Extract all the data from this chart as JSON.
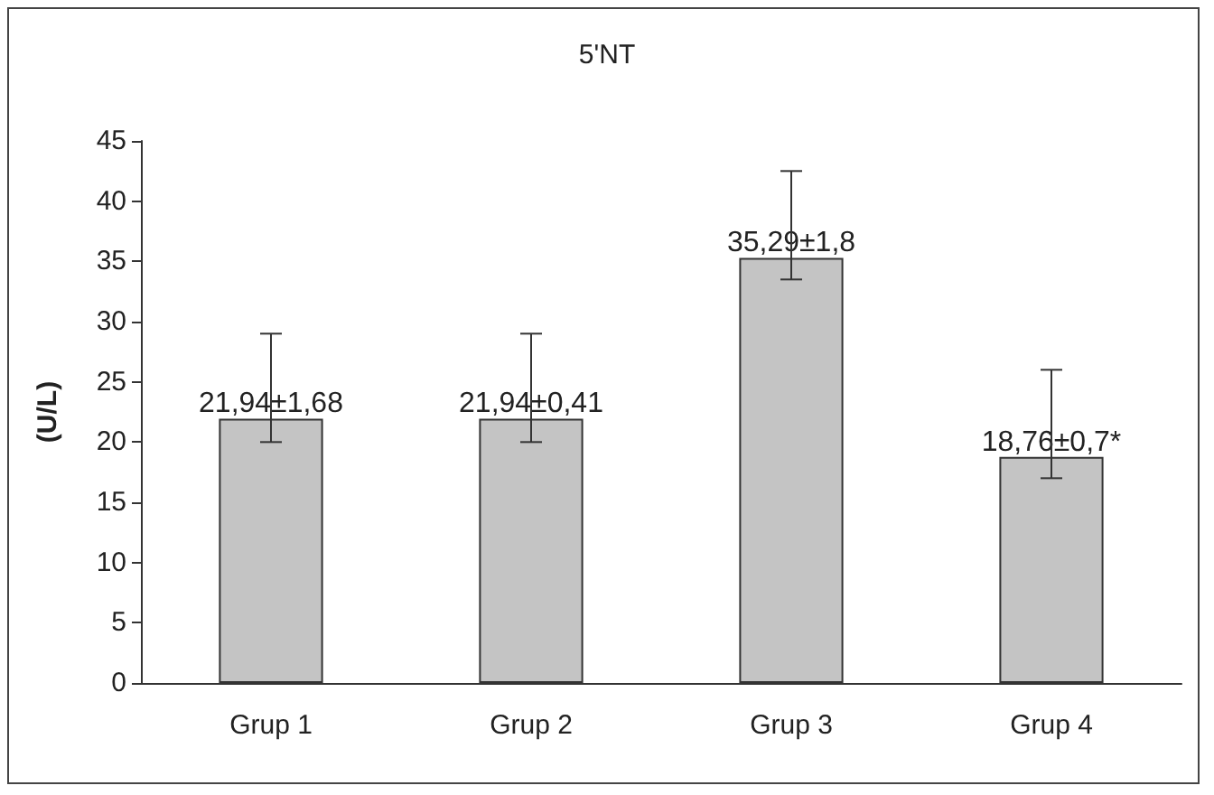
{
  "chart_data": {
    "type": "bar",
    "title": "5'NT",
    "ylabel": "(U/L)",
    "categories": [
      "Grup 1",
      "Grup 2",
      "Grup 3",
      "Grup 4"
    ],
    "values": [
      21.94,
      21.94,
      35.29,
      18.76
    ],
    "errors": [
      [
        20,
        29
      ],
      [
        20,
        29
      ],
      [
        33.5,
        42.5
      ],
      [
        17,
        26
      ]
    ],
    "value_labels": [
      "21,94±1,68",
      "21,94±0,41",
      "35,29±1,8",
      "18,76±0,7*"
    ],
    "color": "#c4c4c4",
    "ylim": [
      0,
      45
    ],
    "yticks": [
      0,
      5,
      10,
      15,
      20,
      25,
      30,
      35,
      40,
      45
    ],
    "grid": false
  }
}
